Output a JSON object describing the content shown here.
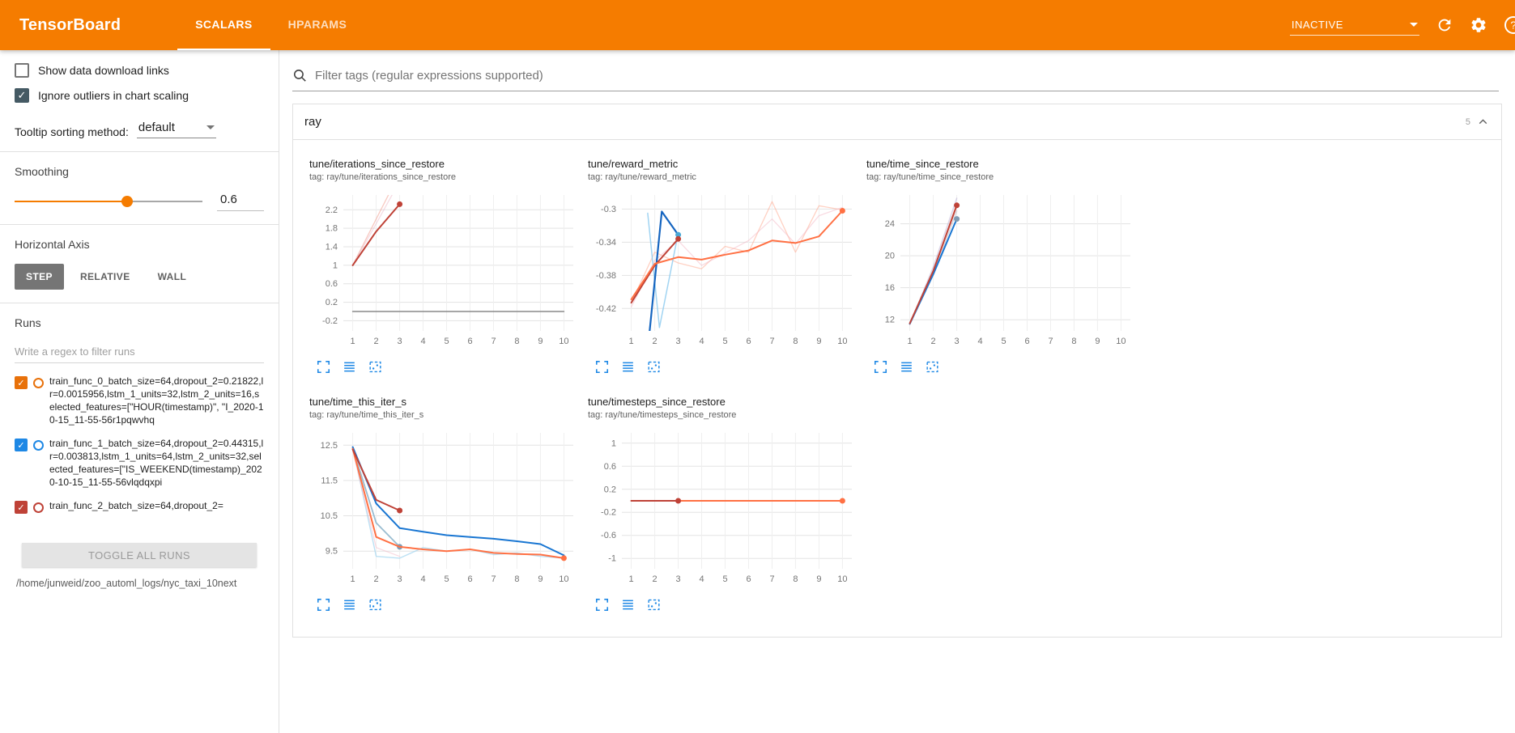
{
  "header": {
    "title": "TensorBoard",
    "tabs": [
      {
        "label": "SCALARS",
        "active": true
      },
      {
        "label": "HPARAMS",
        "active": false
      }
    ],
    "status_value": "INACTIVE"
  },
  "colors": {
    "accent": "#f57c00",
    "toolbar_icon": "#1e88e5",
    "run_orange": "#e8710a",
    "run_blue": "#1e88e5",
    "run_darkred": "#bf4237"
  },
  "icons": {
    "header": [
      "refresh-icon",
      "settings-gear-icon",
      "help-icon"
    ],
    "chart_toolbar": [
      "expand-chart-icon",
      "fit-domain-icon",
      "pin-chart-icon"
    ]
  },
  "sidebar": {
    "show_download": {
      "label": "Show data download links",
      "checked": false
    },
    "ignore_outliers": {
      "label": "Ignore outliers in chart scaling",
      "checked": true
    },
    "tooltip_sorting": {
      "label": "Tooltip sorting method:",
      "value": "default"
    },
    "smoothing": {
      "label": "Smoothing",
      "value": "0.6",
      "fraction": 0.6
    },
    "horizontal_axis": {
      "label": "Horizontal Axis",
      "options": [
        {
          "label": "STEP",
          "selected": true
        },
        {
          "label": "RELATIVE",
          "selected": false
        },
        {
          "label": "WALL",
          "selected": false
        }
      ]
    },
    "runs": {
      "label": "Runs",
      "filter_placeholder": "Write a regex to filter runs",
      "items": [
        {
          "label": "train_func_0_batch_size=64,dropout_2=0.21822,lr=0.0015956,lstm_1_units=32,lstm_2_units=16,selected_features=[\"HOUR(timestamp)\", \"I_2020-10-15_11-55-56r1pqwvhq",
          "checked": true,
          "color": "#e8710a"
        },
        {
          "label": "train_func_1_batch_size=64,dropout_2=0.44315,lr=0.003813,lstm_1_units=64,lstm_2_units=32,selected_features=[\"IS_WEEKEND(timestamp)_2020-10-15_11-55-56vlqdqxpi",
          "checked": true,
          "color": "#1e88e5"
        },
        {
          "label": "train_func_2_batch_size=64,dropout_2=",
          "checked": true,
          "color": "#bf4237"
        }
      ],
      "toggle_all_label": "TOGGLE ALL RUNS",
      "log_path": "/home/junweid/zoo_automl_logs/nyc_taxi_10next"
    }
  },
  "main": {
    "filter_placeholder": "Filter tags (regular expressions supported)",
    "section": {
      "name": "ray",
      "count": "5"
    }
  },
  "chart_data": [
    {
      "type": "line",
      "title": "tune/iterations_since_restore",
      "tag": "tag: ray/tune/iterations_since_restore",
      "xlim": [
        0.6,
        10.4
      ],
      "ylim": [
        -0.42,
        2.52
      ],
      "xticks": [
        1,
        2,
        3,
        4,
        5,
        6,
        7,
        8,
        9,
        10
      ],
      "yticks": [
        -0.2,
        0.2,
        0.6,
        1,
        1.4,
        1.8,
        2.2
      ],
      "series": [
        {
          "name": "run0-raw",
          "color": "#f19483",
          "width": 1.3,
          "opacity": 0.5,
          "x": [
            1,
            2,
            3
          ],
          "y": [
            1,
            2,
            3
          ]
        },
        {
          "name": "run2-raw",
          "color": "#e8b0c2",
          "width": 1.3,
          "opacity": 0.45,
          "x": [
            1,
            2,
            3.2
          ],
          "y": [
            1,
            1.9,
            3
          ]
        },
        {
          "name": "baseline-zero",
          "color": "#8a8a8a",
          "width": 1.6,
          "opacity": 1,
          "x": [
            1,
            10
          ],
          "y": [
            0,
            0
          ]
        },
        {
          "name": "run0-smoothed",
          "color": "#bf4237",
          "width": 2,
          "opacity": 1,
          "x": [
            1,
            2,
            3
          ],
          "y": [
            1,
            1.73,
            2.32
          ],
          "endDot": true
        }
      ]
    },
    {
      "type": "line",
      "title": "tune/reward_metric",
      "tag": "tag: ray/tune/reward_metric",
      "xlim": [
        0.6,
        10.4
      ],
      "ylim": [
        -0.447,
        -0.283
      ],
      "xticks": [
        1,
        2,
        3,
        4,
        5,
        6,
        7,
        8,
        9,
        10
      ],
      "yticks": [
        -0.42,
        -0.38,
        -0.34,
        -0.3
      ],
      "series": [
        {
          "name": "orange-raw",
          "color": "#ffab91",
          "width": 1.3,
          "opacity": 0.55,
          "x": [
            1,
            2,
            3,
            4,
            5,
            6,
            7,
            8,
            9,
            10
          ],
          "y": [
            -0.413,
            -0.352,
            -0.365,
            -0.372,
            -0.345,
            -0.352,
            -0.291,
            -0.352,
            -0.296,
            -0.301
          ]
        },
        {
          "name": "pink-raw",
          "color": "#f3b8c6",
          "width": 1.3,
          "opacity": 0.5,
          "x": [
            1,
            2,
            3,
            4,
            5,
            6,
            7,
            8,
            9,
            10
          ],
          "y": [
            -0.418,
            -0.362,
            -0.338,
            -0.368,
            -0.353,
            -0.338,
            -0.312,
            -0.342,
            -0.308,
            -0.298
          ]
        },
        {
          "name": "lightblue-raw",
          "color": "#90cdf0",
          "width": 1.5,
          "opacity": 0.85,
          "x": [
            1.7,
            2.2,
            3
          ],
          "y": [
            -0.305,
            -0.443,
            -0.329
          ]
        },
        {
          "name": "blue-smoothed",
          "color": "#1565c0",
          "width": 2.2,
          "opacity": 1,
          "x": [
            1.7,
            2.3,
            3
          ],
          "y": [
            -0.47,
            -0.303,
            -0.331
          ],
          "endDot": true,
          "dotColor": "#49a8d6"
        },
        {
          "name": "darkred-smoothed",
          "color": "#bf4237",
          "width": 2,
          "opacity": 1,
          "x": [
            1,
            2,
            3
          ],
          "y": [
            -0.413,
            -0.368,
            -0.336
          ],
          "endDot": true
        },
        {
          "name": "orange-smoothed",
          "color": "#ff7043",
          "width": 2,
          "opacity": 1,
          "x": [
            1,
            2,
            3,
            4,
            5,
            6,
            7,
            8,
            9,
            10
          ],
          "y": [
            -0.409,
            -0.366,
            -0.358,
            -0.361,
            -0.355,
            -0.35,
            -0.338,
            -0.341,
            -0.333,
            -0.302
          ],
          "endDot": true
        }
      ]
    },
    {
      "type": "line",
      "title": "tune/time_since_restore",
      "tag": "tag: ray/tune/time_since_restore",
      "xlim": [
        0.6,
        10.4
      ],
      "ylim": [
        10.6,
        27.6
      ],
      "xticks": [
        1,
        2,
        3,
        4,
        5,
        6,
        7,
        8,
        9,
        10
      ],
      "yticks": [
        12,
        16,
        20,
        24
      ],
      "series": [
        {
          "name": "lavender-raw",
          "color": "#b9aed3",
          "width": 1.5,
          "opacity": 0.5,
          "x": [
            1,
            2,
            3
          ],
          "y": [
            11.4,
            18.6,
            27.2
          ]
        },
        {
          "name": "gray-raw",
          "color": "#c2c2cc",
          "width": 1.5,
          "opacity": 0.6,
          "x": [
            1,
            2,
            3
          ],
          "y": [
            11.4,
            17.6,
            25.6
          ]
        },
        {
          "name": "pink-raw",
          "color": "#f0b4ab",
          "width": 1.3,
          "opacity": 0.5,
          "x": [
            1,
            2,
            3
          ],
          "y": [
            11.4,
            18.2,
            26.6
          ]
        },
        {
          "name": "blue-smoothed",
          "color": "#1976d2",
          "width": 2,
          "opacity": 1,
          "x": [
            1,
            2,
            3
          ],
          "y": [
            11.5,
            17.7,
            24.6
          ],
          "endDot": true,
          "dotColor": "#7f9bb3"
        },
        {
          "name": "darkred-smoothed",
          "color": "#bf4237",
          "width": 2,
          "opacity": 1,
          "x": [
            1,
            2,
            3
          ],
          "y": [
            11.55,
            18.1,
            26.3
          ],
          "endDot": true
        }
      ]
    },
    {
      "type": "line",
      "title": "tune/time_this_iter_s",
      "tag": "tag: ray/tune/time_this_iter_s",
      "xlim": [
        0.6,
        10.4
      ],
      "ylim": [
        9.0,
        12.85
      ],
      "xticks": [
        1,
        2,
        3,
        4,
        5,
        6,
        7,
        8,
        9,
        10
      ],
      "yticks": [
        9.5,
        10.5,
        11.5,
        12.5
      ],
      "series": [
        {
          "name": "lightblue-raw",
          "color": "#9fd4f0",
          "width": 1.4,
          "opacity": 0.7,
          "x": [
            1,
            2,
            3,
            4,
            5,
            6,
            7,
            8,
            9,
            10
          ],
          "y": [
            12.45,
            9.35,
            9.3,
            9.6,
            9.5,
            9.55,
            9.4,
            9.45,
            9.35,
            9.3
          ]
        },
        {
          "name": "pink-raw",
          "color": "#f3b8c6",
          "width": 1.3,
          "opacity": 0.5,
          "x": [
            1,
            2,
            3
          ],
          "y": [
            12.35,
            9.6,
            9.35
          ]
        },
        {
          "name": "lightblue-smoothed",
          "color": "#8fb6cc",
          "width": 1.8,
          "opacity": 0.9,
          "x": [
            1,
            2,
            3
          ],
          "y": [
            12.42,
            10.3,
            9.62
          ],
          "endDot": true,
          "dotColor": "#7f9bb3"
        },
        {
          "name": "blue-smoothed",
          "color": "#1976d2",
          "width": 2,
          "opacity": 1,
          "x": [
            1,
            2,
            3,
            4,
            5,
            6,
            7,
            8,
            9,
            10
          ],
          "y": [
            12.45,
            10.85,
            10.15,
            10.05,
            9.95,
            9.9,
            9.85,
            9.78,
            9.7,
            9.38
          ]
        },
        {
          "name": "orange-smoothed",
          "color": "#ff7043",
          "width": 2,
          "opacity": 1,
          "x": [
            1,
            2,
            3,
            4,
            5,
            6,
            7,
            8,
            9,
            10
          ],
          "y": [
            12.4,
            9.9,
            9.62,
            9.55,
            9.5,
            9.55,
            9.45,
            9.42,
            9.4,
            9.3
          ],
          "endDot": true
        },
        {
          "name": "darkred-smoothed",
          "color": "#bf4237",
          "width": 2,
          "opacity": 1,
          "x": [
            1,
            2,
            3
          ],
          "y": [
            12.38,
            10.95,
            10.65
          ],
          "endDot": true
        }
      ]
    },
    {
      "type": "line",
      "title": "tune/timesteps_since_restore",
      "tag": "tag: ray/tune/timesteps_since_restore",
      "xlim": [
        0.6,
        10.4
      ],
      "ylim": [
        -1.18,
        1.18
      ],
      "xticks": [
        1,
        2,
        3,
        4,
        5,
        6,
        7,
        8,
        9,
        10
      ],
      "yticks": [
        -1,
        -0.6,
        -0.2,
        0.2,
        0.6,
        1
      ],
      "series": [
        {
          "name": "gray-line",
          "color": "#8a8a8a",
          "width": 1.6,
          "opacity": 1,
          "x": [
            1,
            10
          ],
          "y": [
            0,
            0
          ]
        },
        {
          "name": "orange-smoothed",
          "color": "#ff7043",
          "width": 2,
          "opacity": 1,
          "x": [
            1,
            10
          ],
          "y": [
            0,
            0
          ],
          "endDot": true
        },
        {
          "name": "darkred-smoothed",
          "color": "#bf4237",
          "width": 2,
          "opacity": 1,
          "x": [
            1,
            3
          ],
          "y": [
            0,
            0
          ],
          "endDot": true
        }
      ]
    }
  ]
}
